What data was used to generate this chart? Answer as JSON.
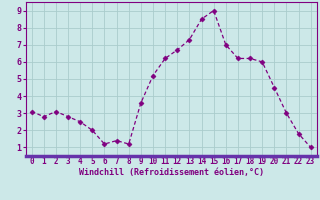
{
  "x": [
    0,
    1,
    2,
    3,
    4,
    5,
    6,
    7,
    8,
    9,
    10,
    11,
    12,
    13,
    14,
    15,
    16,
    17,
    18,
    19,
    20,
    21,
    22,
    23
  ],
  "y": [
    3.1,
    2.8,
    3.1,
    2.8,
    2.5,
    2.0,
    1.2,
    1.4,
    1.2,
    3.6,
    5.2,
    6.2,
    6.7,
    7.3,
    8.5,
    9.0,
    7.0,
    6.2,
    6.2,
    6.0,
    4.5,
    3.0,
    1.8,
    1.0
  ],
  "line_color": "#800080",
  "marker": "D",
  "marker_size": 2.5,
  "bg_color": "#cce8e8",
  "grid_color": "#aacccc",
  "xlabel": "Windchill (Refroidissement éolien,°C)",
  "xlabel_color": "#800080",
  "ylabel_ticks": [
    1,
    2,
    3,
    4,
    5,
    6,
    7,
    8,
    9
  ],
  "xlim": [
    -0.5,
    23.5
  ],
  "ylim": [
    0.5,
    9.5
  ],
  "axis_color": "#800080",
  "tick_color": "#800080",
  "spine_bottom_color": "#6633aa",
  "xtick_fontsize": 5.5,
  "ytick_fontsize": 6.0,
  "xlabel_fontsize": 6.0
}
